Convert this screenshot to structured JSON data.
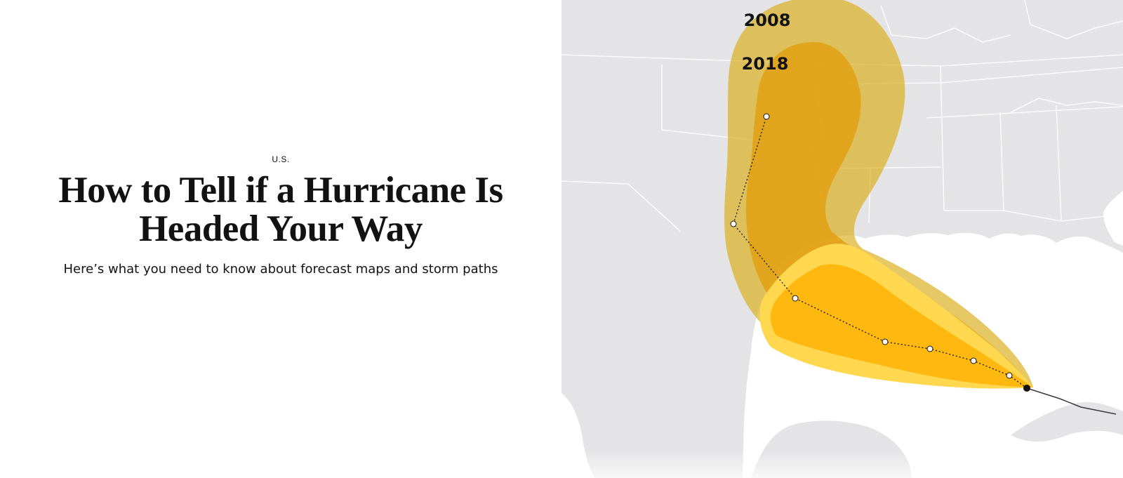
{
  "article": {
    "kicker": "U.S.",
    "headline_lines": [
      "How to Tell if a Hurricane Is",
      "Headed Your Way"
    ],
    "dek": "Here’s what you need to know about forecast maps and storm paths"
  },
  "map": {
    "cones": [
      {
        "year": "2008",
        "color": "#d9ab12"
      },
      {
        "year": "2018",
        "color": "#e2a012"
      }
    ],
    "near_term_cone_colors": [
      "#ffd850",
      "#ffb810"
    ],
    "track_colors": {
      "forecast_point": "#ffffff",
      "current_position": "#121212",
      "past_track": "#3a3a3a"
    },
    "land_color": "#e4e4e6",
    "water_color": "#ffffff",
    "border_color": "#ffffff"
  }
}
